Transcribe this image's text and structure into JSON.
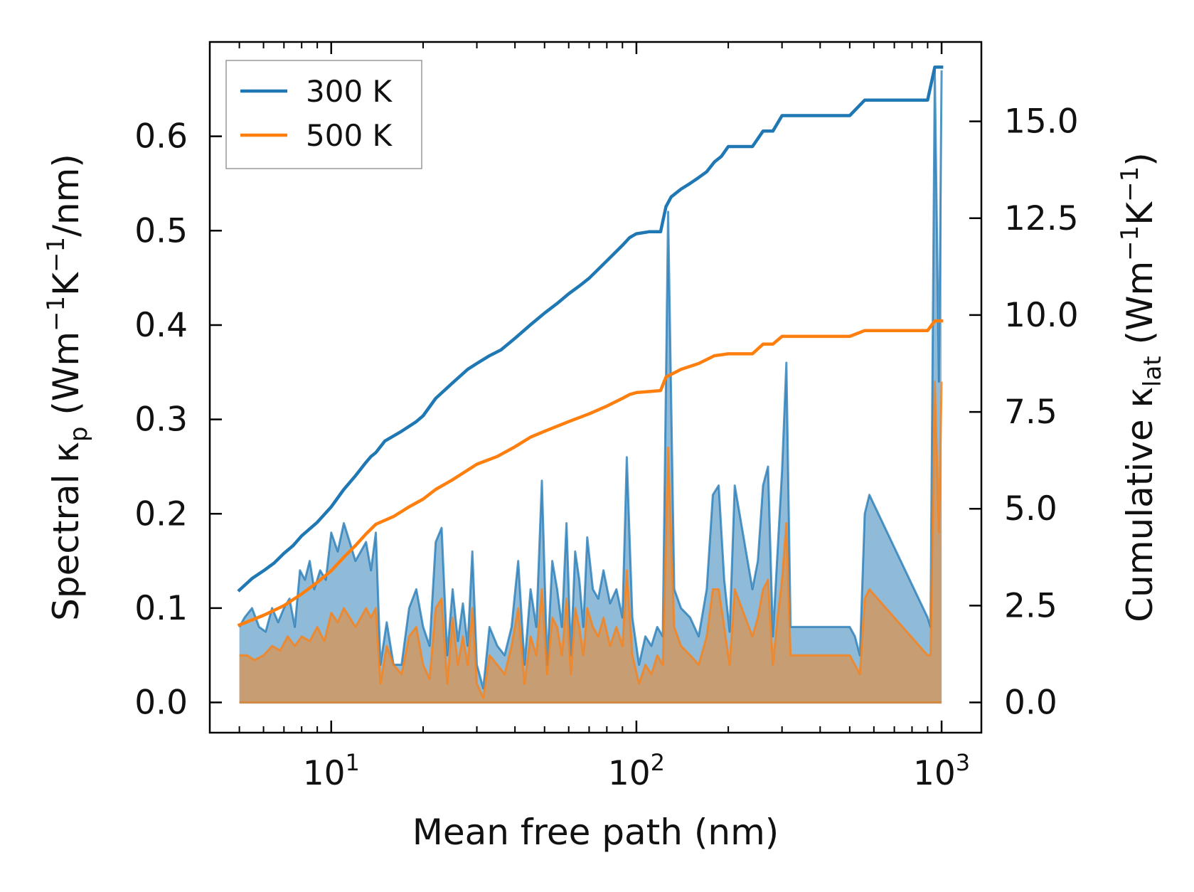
{
  "chart_data": {
    "type": "line",
    "xlabel": "Mean free path (nm)",
    "x_scale": "log",
    "xlim": [
      4.0,
      1350
    ],
    "x_ticks": [
      {
        "value": 10,
        "base": "10",
        "exp": "1"
      },
      {
        "value": 100,
        "base": "10",
        "exp": "2"
      },
      {
        "value": 1000,
        "base": "10",
        "exp": "3"
      }
    ],
    "ylabel_left": {
      "pre": "Spectral κ",
      "sub": "p",
      "mid": " (Wm",
      "sup1": "−1",
      "mid2": "K",
      "sup2": "−1",
      "post": "/nm)"
    },
    "ylim_left": [
      -0.032,
      0.7
    ],
    "yticks_left": [
      "0.0",
      "0.1",
      "0.2",
      "0.3",
      "0.4",
      "0.5",
      "0.6"
    ],
    "ylabel_right": {
      "pre": "Cumulative κ",
      "sub": "lat",
      "mid": " (Wm",
      "sup1": "−1",
      "mid2": "K",
      "sup2": "−1",
      "post": ")"
    },
    "ylim_right": [
      -0.78,
      17.05
    ],
    "yticks_right": [
      "0.0",
      "2.5",
      "5.0",
      "7.5",
      "10.0",
      "12.5",
      "15.0"
    ],
    "legend": {
      "position": "top-left",
      "entries": [
        "300 K",
        "500 K"
      ]
    },
    "colors": {
      "300 K": "#1f77b4",
      "500 K": "#ff7f0e"
    },
    "cumulative_series": [
      {
        "name": "300 K",
        "axis": "right",
        "x": [
          5.0,
          5.5,
          6.0,
          6.5,
          7.0,
          7.5,
          8.0,
          9.0,
          10.0,
          11.0,
          12.0,
          13.0,
          13.5,
          14.0,
          15.0,
          17.0,
          19.0,
          20.0,
          22.0,
          25.0,
          28.0,
          30.0,
          33.0,
          36.0,
          40.0,
          45.0,
          50.0,
          55.0,
          60.0,
          65.0,
          70.0,
          80.0,
          90.0,
          95.0,
          100.0,
          110.0,
          120.0,
          125.0,
          130.0,
          140.0,
          150.0,
          160.0,
          170.0,
          180.0,
          190.0,
          200.0,
          240.0,
          260.0,
          280.0,
          300.0,
          310.0,
          500.0,
          560.0,
          900.0,
          950.0,
          1000.0
        ],
        "y": [
          2.9,
          3.2,
          3.4,
          3.6,
          3.85,
          4.05,
          4.3,
          4.65,
          5.05,
          5.5,
          5.85,
          6.2,
          6.35,
          6.45,
          6.75,
          7.0,
          7.25,
          7.4,
          7.85,
          8.25,
          8.6,
          8.75,
          8.95,
          9.1,
          9.4,
          9.75,
          10.05,
          10.3,
          10.55,
          10.75,
          10.95,
          11.4,
          11.8,
          12.0,
          12.1,
          12.15,
          12.15,
          12.8,
          13.05,
          13.25,
          13.4,
          13.55,
          13.7,
          13.95,
          14.1,
          14.35,
          14.35,
          14.75,
          14.75,
          15.15,
          15.15,
          15.15,
          15.55,
          15.55,
          16.4,
          16.4
        ]
      },
      {
        "name": "500 K",
        "axis": "right",
        "x": [
          5.0,
          6.0,
          7.0,
          8.0,
          9.0,
          10.0,
          11.0,
          12.0,
          13.0,
          14.0,
          16.0,
          18.0,
          20.0,
          22.0,
          25.0,
          30.0,
          35.0,
          40.0,
          45.0,
          50.0,
          60.0,
          70.0,
          80.0,
          90.0,
          95.0,
          100.0,
          120.0,
          125.0,
          140.0,
          160.0,
          180.0,
          200.0,
          240.0,
          260.0,
          280.0,
          300.0,
          310.0,
          500.0,
          560.0,
          900.0,
          950.0,
          1000.0
        ],
        "y": [
          2.0,
          2.25,
          2.5,
          2.8,
          3.1,
          3.4,
          3.75,
          4.05,
          4.35,
          4.6,
          4.8,
          5.05,
          5.25,
          5.5,
          5.75,
          6.15,
          6.35,
          6.6,
          6.85,
          7.0,
          7.25,
          7.45,
          7.65,
          7.85,
          7.95,
          8.0,
          8.05,
          8.4,
          8.6,
          8.75,
          8.95,
          9.0,
          9.0,
          9.25,
          9.25,
          9.45,
          9.45,
          9.45,
          9.6,
          9.6,
          9.85,
          9.85
        ]
      }
    ],
    "spectral_series": [
      {
        "name": "300 K",
        "axis": "left",
        "x": [
          5.0,
          5.2,
          5.5,
          5.8,
          6.1,
          6.4,
          6.7,
          7.0,
          7.3,
          7.6,
          7.9,
          8.2,
          8.5,
          8.8,
          9.2,
          9.6,
          10.0,
          10.5,
          11.0,
          11.5,
          12.0,
          12.5,
          13.0,
          13.5,
          14.0,
          14.5,
          15.2,
          16.0,
          17.0,
          18.0,
          19.0,
          20.0,
          21.0,
          22.0,
          23.0,
          24.0,
          25.0,
          26.0,
          27.0,
          28.0,
          29.0,
          30.0,
          31.5,
          33.0,
          35.0,
          37.0,
          39.0,
          41.0,
          43.0,
          45.0,
          47.0,
          49.0,
          51.0,
          53.0,
          55.0,
          57.0,
          59.0,
          61.0,
          63.0,
          65.0,
          67.0,
          69.0,
          72.0,
          75.0,
          78.0,
          82.0,
          86.0,
          90.0,
          93.0,
          97.0,
          102.0,
          107.0,
          112.0,
          117.0,
          122.0,
          127.0,
          133.0,
          140.0,
          150.0,
          160.0,
          170.0,
          178.0,
          186.0,
          194.0,
          202.0,
          210.0,
          240.0,
          250.0,
          260.0,
          270.0,
          280.0,
          290.0,
          300.0,
          310.0,
          320.0,
          500.0,
          520.0,
          540.0,
          560.0,
          580.0,
          900.0,
          920.0,
          950.0,
          980.0,
          1000.0
        ],
        "y": [
          0.08,
          0.09,
          0.1,
          0.08,
          0.075,
          0.1,
          0.085,
          0.1,
          0.11,
          0.08,
          0.14,
          0.13,
          0.15,
          0.12,
          0.14,
          0.13,
          0.18,
          0.16,
          0.19,
          0.17,
          0.15,
          0.16,
          0.17,
          0.14,
          0.18,
          0.04,
          0.085,
          0.04,
          0.04,
          0.1,
          0.12,
          0.08,
          0.06,
          0.17,
          0.185,
          0.05,
          0.12,
          0.065,
          0.105,
          0.06,
          0.16,
          0.04,
          0.015,
          0.08,
          0.06,
          0.05,
          0.08,
          0.15,
          0.04,
          0.12,
          0.08,
          0.235,
          0.04,
          0.15,
          0.12,
          0.08,
          0.19,
          0.05,
          0.16,
          0.13,
          0.08,
          0.175,
          0.12,
          0.11,
          0.14,
          0.105,
          0.12,
          0.09,
          0.26,
          0.09,
          0.04,
          0.07,
          0.06,
          0.08,
          0.07,
          0.52,
          0.12,
          0.1,
          0.09,
          0.07,
          0.12,
          0.22,
          0.23,
          0.13,
          0.075,
          0.23,
          0.12,
          0.15,
          0.23,
          0.25,
          0.07,
          0.16,
          0.245,
          0.36,
          0.08,
          0.08,
          0.07,
          0.05,
          0.2,
          0.22,
          0.09,
          0.08,
          0.67,
          0.34,
          0.67
        ]
      },
      {
        "name": "500 K",
        "axis": "left",
        "x": [
          5.0,
          5.3,
          5.6,
          6.0,
          6.4,
          6.8,
          7.2,
          7.6,
          8.0,
          8.5,
          9.0,
          9.5,
          10.0,
          10.5,
          11.0,
          11.5,
          12.0,
          12.5,
          13.0,
          13.5,
          14.0,
          14.5,
          15.2,
          16.0,
          17.0,
          18.0,
          19.0,
          20.0,
          21.0,
          22.0,
          23.0,
          24.0,
          25.0,
          26.0,
          27.0,
          28.0,
          29.0,
          30.0,
          31.5,
          33.0,
          35.0,
          37.0,
          39.0,
          41.0,
          43.0,
          45.0,
          47.0,
          49.0,
          51.0,
          53.0,
          55.0,
          57.0,
          59.0,
          61.0,
          63.0,
          65.0,
          67.0,
          69.0,
          72.0,
          75.0,
          78.0,
          82.0,
          86.0,
          90.0,
          93.0,
          97.0,
          102.0,
          107.0,
          112.0,
          117.0,
          122.0,
          127.0,
          133.0,
          140.0,
          150.0,
          160.0,
          170.0,
          178.0,
          186.0,
          194.0,
          202.0,
          210.0,
          240.0,
          250.0,
          260.0,
          270.0,
          280.0,
          290.0,
          300.0,
          310.0,
          320.0,
          500.0,
          520.0,
          540.0,
          560.0,
          580.0,
          900.0,
          920.0,
          950.0,
          980.0,
          1000.0
        ],
        "y": [
          0.05,
          0.05,
          0.045,
          0.05,
          0.06,
          0.055,
          0.07,
          0.06,
          0.07,
          0.065,
          0.08,
          0.065,
          0.095,
          0.085,
          0.1,
          0.09,
          0.08,
          0.09,
          0.1,
          0.09,
          0.1,
          0.02,
          0.06,
          0.04,
          0.03,
          0.07,
          0.08,
          0.04,
          0.025,
          0.1,
          0.11,
          0.02,
          0.09,
          0.04,
          0.07,
          0.04,
          0.1,
          0.02,
          0.005,
          0.05,
          0.04,
          0.03,
          0.06,
          0.1,
          0.02,
          0.07,
          0.05,
          0.12,
          0.03,
          0.09,
          0.08,
          0.05,
          0.11,
          0.03,
          0.1,
          0.08,
          0.05,
          0.1,
          0.08,
          0.07,
          0.09,
          0.06,
          0.08,
          0.06,
          0.14,
          0.05,
          0.02,
          0.04,
          0.03,
          0.05,
          0.04,
          0.27,
          0.08,
          0.06,
          0.05,
          0.04,
          0.07,
          0.12,
          0.12,
          0.08,
          0.04,
          0.12,
          0.07,
          0.09,
          0.12,
          0.13,
          0.04,
          0.09,
          0.13,
          0.19,
          0.05,
          0.05,
          0.04,
          0.03,
          0.11,
          0.12,
          0.05,
          0.05,
          0.34,
          0.18,
          0.34
        ]
      }
    ]
  }
}
